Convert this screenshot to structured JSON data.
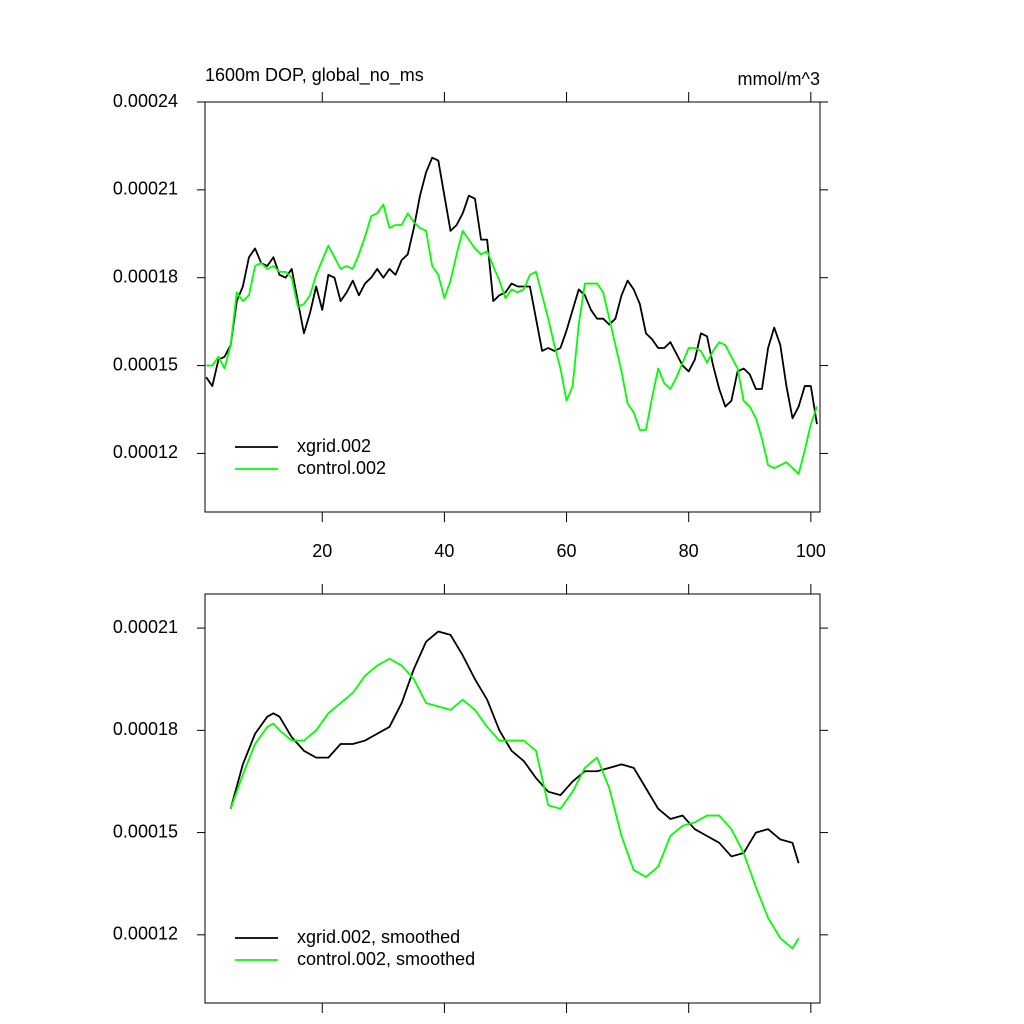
{
  "chart_data": [
    {
      "type": "line",
      "title": "1600m DOP, global_no_ms",
      "subtitle": "mmol/m^3",
      "x": [
        1,
        2,
        3,
        4,
        5,
        6,
        7,
        8,
        9,
        10,
        11,
        12,
        13,
        14,
        15,
        16,
        17,
        18,
        19,
        20,
        21,
        22,
        23,
        24,
        25,
        26,
        27,
        28,
        29,
        30,
        31,
        32,
        33,
        34,
        35,
        36,
        37,
        38,
        39,
        40,
        41,
        42,
        43,
        44,
        45,
        46,
        47,
        48,
        49,
        50,
        51,
        52,
        53,
        54,
        55,
        56,
        57,
        58,
        59,
        60,
        61,
        62,
        63,
        64,
        65,
        66,
        67,
        68,
        69,
        70,
        71,
        72,
        73,
        74,
        75,
        76,
        77,
        78,
        79,
        80,
        81,
        82,
        83,
        84,
        85,
        86,
        87,
        88,
        89,
        90,
        91,
        92,
        93,
        94,
        95,
        96,
        97,
        98,
        99,
        100,
        101
      ],
      "series": [
        {
          "name": "xgrid.002",
          "color": "#000000",
          "values": [
            0.000146,
            0.000143,
            0.000152,
            0.000153,
            0.000157,
            0.000172,
            0.000177,
            0.000187,
            0.00019,
            0.000185,
            0.000184,
            0.000187,
            0.000181,
            0.00018,
            0.000183,
            0.000172,
            0.000161,
            0.000168,
            0.000177,
            0.000169,
            0.000181,
            0.00018,
            0.000172,
            0.000175,
            0.000179,
            0.000174,
            0.000178,
            0.00018,
            0.000183,
            0.00018,
            0.000183,
            0.000181,
            0.000186,
            0.000188,
            0.000197,
            0.000208,
            0.000216,
            0.000221,
            0.00022,
            0.000208,
            0.000196,
            0.000198,
            0.000202,
            0.000208,
            0.000207,
            0.000193,
            0.000193,
            0.000172,
            0.000174,
            0.000175,
            0.000178,
            0.000177,
            0.000177,
            0.000177,
            0.000166,
            0.000155,
            0.000156,
            0.000155,
            0.000156,
            0.000162,
            0.000169,
            0.000176,
            0.000174,
            0.000169,
            0.000166,
            0.000166,
            0.000164,
            0.000166,
            0.000174,
            0.000179,
            0.000176,
            0.000171,
            0.000161,
            0.000159,
            0.000156,
            0.000156,
            0.000158,
            0.000154,
            0.00015,
            0.000148,
            0.000152,
            0.000161,
            0.00016,
            0.00015,
            0.000142,
            0.000136,
            0.000138,
            0.000148,
            0.000149,
            0.000147,
            0.000142,
            0.000142,
            0.000156,
            0.000163,
            0.000157,
            0.000143,
            0.000132,
            0.000136,
            0.000143,
            0.000143,
            0.00013
          ]
        },
        {
          "name": "control.002",
          "color": "#00ff00",
          "values": [
            0.00015,
            0.00015,
            0.000153,
            0.000149,
            0.000157,
            0.000175,
            0.000172,
            0.000174,
            0.000184,
            0.000185,
            0.000183,
            0.000184,
            0.000182,
            0.000182,
            0.00018,
            0.00017,
            0.000171,
            0.000174,
            0.000181,
            0.000186,
            0.000191,
            0.000187,
            0.000183,
            0.000184,
            0.000183,
            0.000188,
            0.000194,
            0.000201,
            0.000202,
            0.000205,
            0.000197,
            0.000198,
            0.000198,
            0.000202,
            0.000199,
            0.000197,
            0.000196,
            0.000184,
            0.000181,
            0.000173,
            0.000179,
            0.000188,
            0.000196,
            0.000193,
            0.00019,
            0.000188,
            0.000189,
            0.000184,
            0.000179,
            0.000173,
            0.000176,
            0.000175,
            0.000176,
            0.000181,
            0.000182,
            0.000174,
            0.000166,
            0.000157,
            0.000149,
            0.000138,
            0.000143,
            0.000164,
            0.000178,
            0.000178,
            0.000178,
            0.000175,
            0.000166,
            0.000157,
            0.000148,
            0.000137,
            0.000134,
            0.000128,
            0.000128,
            0.000139,
            0.000149,
            0.000144,
            0.000142,
            0.000146,
            0.000151,
            0.000156,
            0.000156,
            0.000155,
            0.000151,
            0.000155,
            0.000158,
            0.000157,
            0.000153,
            0.000149,
            0.000138,
            0.000136,
            0.000132,
            0.000125,
            0.000116,
            0.000115,
            0.000116,
            0.000117,
            0.000115,
            0.000113,
            0.000121,
            0.00013,
            0.000136
          ]
        }
      ],
      "xlim": [
        0.8,
        101.5
      ],
      "xticks": [
        20,
        40,
        60,
        80,
        100
      ],
      "xtick_labels": true,
      "ylim": [
        0.0001,
        0.00024
      ],
      "yticks": [
        0.00012,
        0.00015,
        0.00018,
        0.00021,
        0.00024
      ],
      "legend": "lower left"
    },
    {
      "type": "line",
      "x": [
        5,
        7,
        9,
        11,
        12,
        13,
        15,
        17,
        19,
        21,
        23,
        25,
        27,
        29,
        31,
        33,
        35,
        37,
        39,
        41,
        43,
        45,
        47,
        49,
        51,
        53,
        55,
        57,
        59,
        61,
        63,
        65,
        67,
        69,
        71,
        73,
        75,
        77,
        79,
        81,
        83,
        85,
        87,
        89,
        91,
        93,
        95,
        97,
        98
      ],
      "series": [
        {
          "name": "xgrid.002, smoothed",
          "color": "#000000",
          "values": [
            0.000157,
            0.00017,
            0.000179,
            0.000184,
            0.000185,
            0.000184,
            0.000178,
            0.000174,
            0.000172,
            0.000172,
            0.000176,
            0.000176,
            0.000177,
            0.000179,
            0.000181,
            0.000188,
            0.000198,
            0.000206,
            0.000209,
            0.000208,
            0.000202,
            0.000195,
            0.000189,
            0.00018,
            0.000174,
            0.000171,
            0.000166,
            0.000162,
            0.000161,
            0.000165,
            0.000168,
            0.000168,
            0.000169,
            0.00017,
            0.000169,
            0.000163,
            0.000157,
            0.000154,
            0.000155,
            0.000151,
            0.000149,
            0.000147,
            0.000143,
            0.000144,
            0.00015,
            0.000151,
            0.000148,
            0.000147,
            0.000141
          ]
        },
        {
          "name": "control.002, smoothed",
          "color": "#00ff00",
          "values": [
            0.000157,
            0.000167,
            0.000176,
            0.000181,
            0.000182,
            0.00018,
            0.000177,
            0.000177,
            0.00018,
            0.000185,
            0.000188,
            0.000191,
            0.000196,
            0.000199,
            0.000201,
            0.000199,
            0.000195,
            0.000188,
            0.000187,
            0.000186,
            0.000189,
            0.000186,
            0.000181,
            0.000177,
            0.000177,
            0.000177,
            0.000174,
            0.000158,
            0.000157,
            0.000162,
            0.000169,
            0.000172,
            0.000163,
            0.000149,
            0.000139,
            0.000137,
            0.00014,
            0.000149,
            0.000152,
            0.000153,
            0.000155,
            0.000155,
            0.000151,
            0.000144,
            0.000134,
            0.000125,
            0.000119,
            0.000116,
            0.000119
          ]
        }
      ],
      "xlim": [
        0.8,
        101.5
      ],
      "xticks": [
        20,
        40,
        60,
        80,
        100
      ],
      "xtick_labels": false,
      "ylim": [
        0.0001,
        0.00022
      ],
      "yticks": [
        0.00012,
        0.00015,
        0.00018,
        0.00021
      ],
      "legend": "lower left"
    }
  ]
}
